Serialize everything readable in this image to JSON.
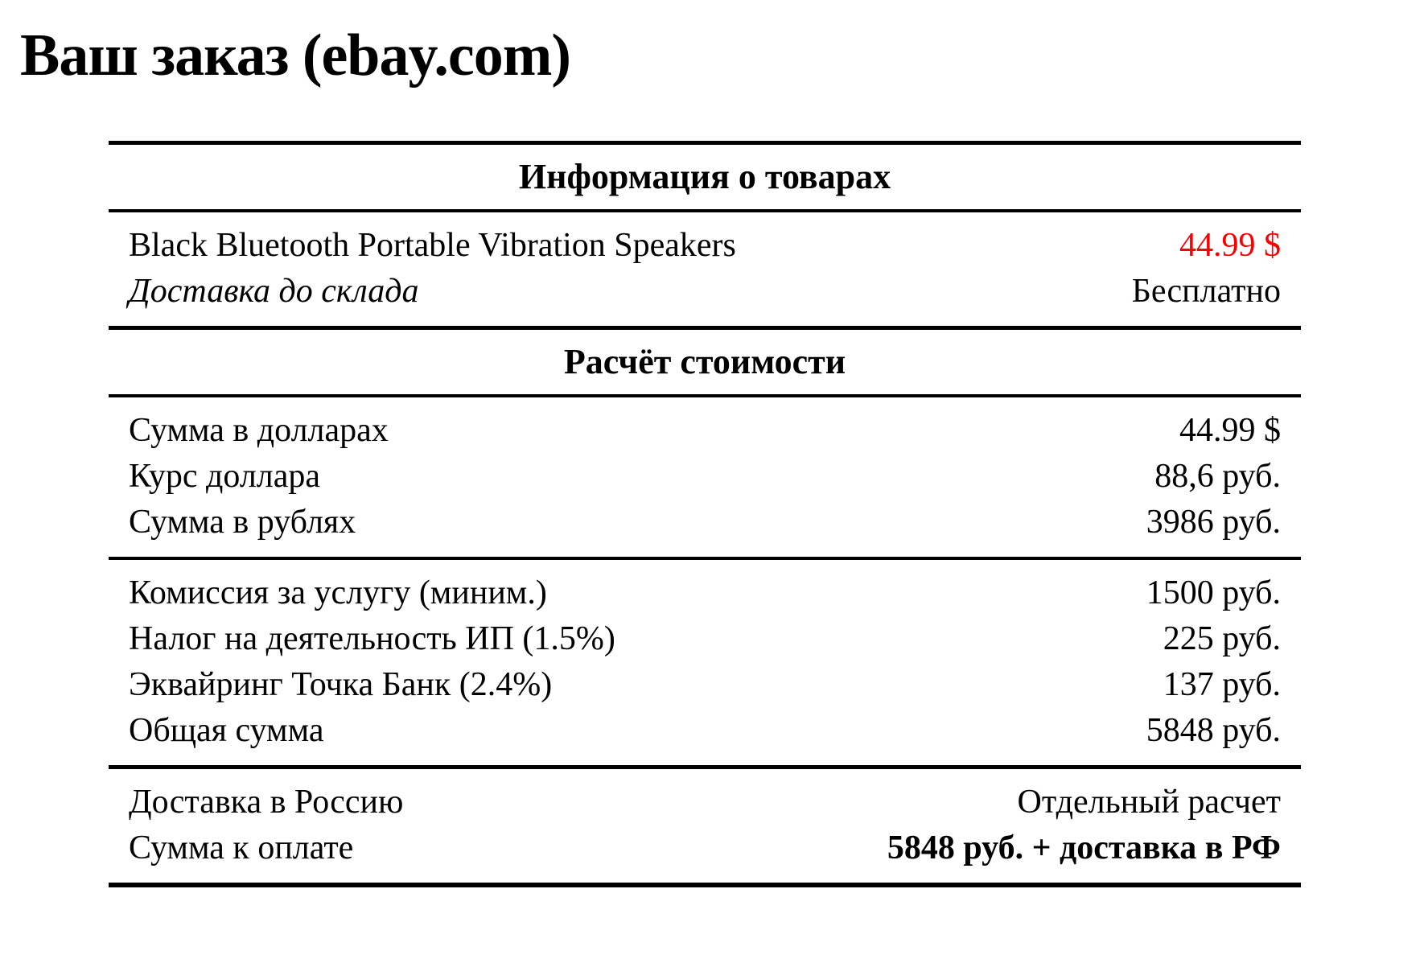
{
  "title": "Ваш заказ (ebay.com)",
  "colors": {
    "price_red": "#fc0000"
  },
  "order_table": {
    "products_section": {
      "header": "Информация о товарах",
      "rows": [
        {
          "label": "Black Bluetooth Portable Vibration Speakers",
          "value": "44.99 $"
        },
        {
          "label": "Доставка до склада",
          "value": "Бесплатно"
        }
      ]
    },
    "calc_section": {
      "header": "Расчёт стоимости",
      "conversion_rows": [
        {
          "label": "Сумма в долларах",
          "value": "44.99 $"
        },
        {
          "label": "Курс доллара",
          "value": "88,6 руб."
        },
        {
          "label": "Сумма в рублях",
          "value": "3986 руб."
        }
      ],
      "fees_rows": [
        {
          "label": "Комиссия за услугу (миним.)",
          "value": "1500 руб."
        },
        {
          "label": "Налог на деятельность ИП (1.5%)",
          "value": "225 руб."
        },
        {
          "label": "Эквайринг Точка Банк (2.4%)",
          "value": "137 руб."
        },
        {
          "label": "Общая сумма",
          "value": "5848 руб."
        }
      ],
      "total_rows": [
        {
          "label": "Доставка в Россию",
          "value": "Отдельный расчет"
        },
        {
          "label": "Сумма к оплате",
          "value": "5848 руб. + доставка в РФ"
        }
      ]
    }
  }
}
